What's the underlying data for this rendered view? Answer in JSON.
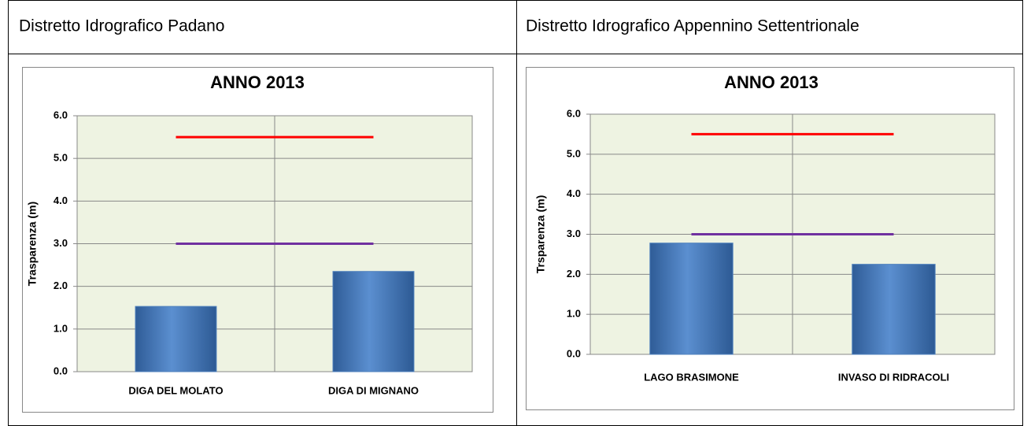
{
  "table": {
    "headers": [
      "Distretto Idrografico Padano",
      "Distretto Idrografico Appennino Settentrionale"
    ]
  },
  "chart_data": [
    {
      "type": "bar",
      "title": "ANNO 2013",
      "ylabel": "Trasparenza (m)",
      "categories": [
        "DIGA DEL MOLATO",
        "DIGA DI MIGNANO"
      ],
      "values": [
        1.53,
        2.35
      ],
      "color": "#4f81bd",
      "lines": [
        {
          "color": "#ff0000",
          "values": [
            5.5,
            5.5
          ]
        },
        {
          "color": "#7030a0",
          "values": [
            3.0,
            3.0
          ]
        }
      ],
      "ylim": [
        0,
        6
      ],
      "yticks": [
        {
          "value": 0,
          "label": "0.0"
        },
        {
          "value": 1,
          "label": "1.0"
        },
        {
          "value": 2,
          "label": "2.0"
        },
        {
          "value": 3,
          "label": "3.0"
        },
        {
          "value": 4,
          "label": "4.0"
        },
        {
          "value": 5,
          "label": "5.0"
        },
        {
          "value": 6,
          "label": "6.0"
        }
      ],
      "grid": true
    },
    {
      "type": "bar",
      "title": "ANNO 2013",
      "ylabel": "Trsparenza (m)",
      "categories": [
        "LAGO BRASIMONE",
        "INVASO DI RIDRACOLI"
      ],
      "values": [
        2.78,
        2.25
      ],
      "color": "#4f81bd",
      "lines": [
        {
          "color": "#ff0000",
          "values": [
            5.5,
            5.5
          ]
        },
        {
          "color": "#7030a0",
          "values": [
            3.0,
            3.0
          ]
        }
      ],
      "ylim": [
        0,
        6
      ],
      "yticks": [
        {
          "value": 0,
          "label": "0.0"
        },
        {
          "value": 1,
          "label": "1.0"
        },
        {
          "value": 2,
          "label": "2.0"
        },
        {
          "value": 3,
          "label": "3.0"
        },
        {
          "value": 4,
          "label": "4.0"
        },
        {
          "value": 5,
          "label": "5.0"
        },
        {
          "value": 6,
          "label": "6.0"
        }
      ],
      "grid": true
    }
  ]
}
